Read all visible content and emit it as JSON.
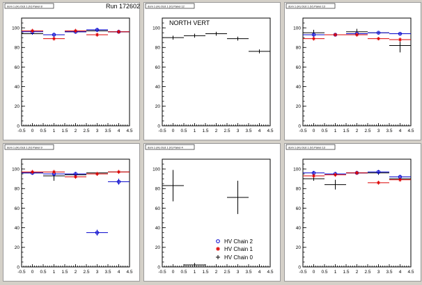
{
  "run_label": "Run 172602",
  "colors": {
    "chain2": "#0000cc",
    "chain1": "#dd0000",
    "chain0": "#000000"
  },
  "legend": {
    "entries": [
      {
        "series": "chain2",
        "label": "HV Chain 2",
        "marker": "circle"
      },
      {
        "series": "chain1",
        "label": "HV Chain 1",
        "marker": "star"
      },
      {
        "series": "chain0",
        "label": "HV Chain 0",
        "marker": "cross"
      }
    ]
  },
  "chart_data": [
    {
      "type": "scatter",
      "title": "dom 1 (H) Ocd 1 (V) Panel 8",
      "xlim": [
        -0.5,
        4.5
      ],
      "ylim": [
        0,
        110
      ],
      "xticks": [
        "-0.5",
        "0",
        "0.5",
        "1",
        "1.5",
        "2",
        "2.5",
        "3",
        "3.5",
        "4",
        "4.5"
      ],
      "yticks": [
        "0",
        "20",
        "40",
        "60",
        "80",
        "100"
      ],
      "series": [
        {
          "key": "chain0",
          "points": [
            {
              "x": 0,
              "y": 94,
              "xerr": 0.5,
              "yerr": 0
            },
            {
              "x": 1,
              "y": 93,
              "xerr": 0.5,
              "yerr": 0
            },
            {
              "x": 2,
              "y": 96,
              "xerr": 0.5,
              "yerr": 0
            },
            {
              "x": 3,
              "y": 97,
              "xerr": 0.5,
              "yerr": 0
            },
            {
              "x": 4,
              "y": 96,
              "xerr": 0.5,
              "yerr": 0
            }
          ]
        },
        {
          "key": "chain2",
          "points": [
            {
              "x": 0,
              "y": 96,
              "xerr": 0.5,
              "yerr": 3
            },
            {
              "x": 1,
              "y": 93,
              "xerr": 0.5,
              "yerr": 2
            },
            {
              "x": 2,
              "y": 96,
              "xerr": 0.5,
              "yerr": 2
            },
            {
              "x": 3,
              "y": 98,
              "xerr": 0.5,
              "yerr": 2
            },
            {
              "x": 4,
              "y": 96,
              "xerr": 0.5,
              "yerr": 2
            }
          ]
        },
        {
          "key": "chain1",
          "points": [
            {
              "x": 0,
              "y": 97,
              "xerr": 0.5,
              "yerr": 2
            },
            {
              "x": 1,
              "y": 89,
              "xerr": 0.5,
              "yerr": 2
            },
            {
              "x": 2,
              "y": 97,
              "xerr": 0.5,
              "yerr": 2
            },
            {
              "x": 3,
              "y": 93,
              "xerr": 0.5,
              "yerr": 2
            },
            {
              "x": 4,
              "y": 96,
              "xerr": 0.5,
              "yerr": 2
            }
          ]
        }
      ]
    },
    {
      "type": "scatter",
      "title": "dom 1 (H) Ocd 1 (V) Panel 12",
      "annotation": "NORTH VERT",
      "xlim": [
        -0.5,
        4.5
      ],
      "ylim": [
        0,
        110
      ],
      "xticks": [
        "-0.5",
        "0",
        "0.5",
        "1",
        "1.5",
        "2",
        "2.5",
        "3",
        "3.5",
        "4",
        "4.5"
      ],
      "yticks": [
        "0",
        "20",
        "40",
        "60",
        "80",
        "100"
      ],
      "series": [
        {
          "key": "chain0",
          "points": [
            {
              "x": 0,
              "y": 90,
              "xerr": 0.5,
              "yerr": 2
            },
            {
              "x": 1,
              "y": 92,
              "xerr": 0.5,
              "yerr": 2
            },
            {
              "x": 2,
              "y": 94,
              "xerr": 0.5,
              "yerr": 2
            },
            {
              "x": 3,
              "y": 89,
              "xerr": 0.5,
              "yerr": 2
            },
            {
              "x": 4,
              "y": 76,
              "xerr": 0.5,
              "yerr": 2
            }
          ]
        }
      ]
    },
    {
      "type": "scatter",
      "title": "dom 1 (H) Ocd 1 (V) Panel 13",
      "xlim": [
        -0.5,
        4.5
      ],
      "ylim": [
        0,
        110
      ],
      "xticks": [
        "-0.5",
        "0",
        "0.5",
        "1",
        "1.5",
        "2",
        "2.5",
        "3",
        "3.5",
        "4",
        "4.5"
      ],
      "yticks": [
        "0",
        "20",
        "40",
        "60",
        "80",
        "100"
      ],
      "series": [
        {
          "key": "chain0",
          "points": [
            {
              "x": 0,
              "y": 95,
              "xerr": 0.5,
              "yerr": 3
            },
            {
              "x": 1,
              "y": 93,
              "xerr": 0.5,
              "yerr": 0
            },
            {
              "x": 2,
              "y": 96,
              "xerr": 0.5,
              "yerr": 3
            },
            {
              "x": 3,
              "y": 95,
              "xerr": 0.5,
              "yerr": 0
            },
            {
              "x": 4,
              "y": 82,
              "xerr": 0.5,
              "yerr": 7
            }
          ]
        },
        {
          "key": "chain2",
          "points": [
            {
              "x": 0,
              "y": 93,
              "xerr": 0.5,
              "yerr": 2
            },
            {
              "x": 1,
              "y": 93,
              "xerr": 0.5,
              "yerr": 1
            },
            {
              "x": 2,
              "y": 94,
              "xerr": 0.5,
              "yerr": 2
            },
            {
              "x": 3,
              "y": 95,
              "xerr": 0.5,
              "yerr": 1
            },
            {
              "x": 4,
              "y": 94,
              "xerr": 0.5,
              "yerr": 1
            }
          ]
        },
        {
          "key": "chain1",
          "points": [
            {
              "x": 0,
              "y": 89,
              "xerr": 0.5,
              "yerr": 2
            },
            {
              "x": 1,
              "y": 93,
              "xerr": 0.5,
              "yerr": 1
            },
            {
              "x": 2,
              "y": 93,
              "xerr": 0.5,
              "yerr": 2
            },
            {
              "x": 3,
              "y": 89,
              "xerr": 0.5,
              "yerr": 1
            },
            {
              "x": 4,
              "y": 88,
              "xerr": 0.5,
              "yerr": 2
            }
          ]
        }
      ]
    },
    {
      "type": "scatter",
      "title": "dom 1 (H) Ocd 1 (V) Panel 9",
      "xlim": [
        -0.5,
        4.5
      ],
      "ylim": [
        0,
        110
      ],
      "xticks": [
        "-0.5",
        "0",
        "0.5",
        "1",
        "1.5",
        "2",
        "2.5",
        "3",
        "3.5",
        "4",
        "4.5"
      ],
      "yticks": [
        "0",
        "20",
        "40",
        "60",
        "80",
        "100"
      ],
      "series": [
        {
          "key": "chain0",
          "points": [
            {
              "x": 0,
              "y": 96,
              "xerr": 0.5,
              "yerr": 0
            },
            {
              "x": 1,
              "y": 93,
              "xerr": 0.5,
              "yerr": 5
            },
            {
              "x": 2,
              "y": 94,
              "xerr": 0.5,
              "yerr": 0
            },
            {
              "x": 3,
              "y": 96,
              "xerr": 0.5,
              "yerr": 0
            },
            {
              "x": 4,
              "y": 97,
              "xerr": 0.5,
              "yerr": 0
            }
          ]
        },
        {
          "key": "chain2",
          "points": [
            {
              "x": 0,
              "y": 96,
              "xerr": 0.5,
              "yerr": 2
            },
            {
              "x": 1,
              "y": 95,
              "xerr": 0.5,
              "yerr": 2
            },
            {
              "x": 2,
              "y": 95,
              "xerr": 0.5,
              "yerr": 2
            },
            {
              "x": 3,
              "y": 35,
              "xerr": 0.5,
              "yerr": 3
            },
            {
              "x": 4,
              "y": 87,
              "xerr": 0.5,
              "yerr": 3
            }
          ]
        },
        {
          "key": "chain1",
          "points": [
            {
              "x": 0,
              "y": 97,
              "xerr": 0.5,
              "yerr": 2
            },
            {
              "x": 1,
              "y": 97,
              "xerr": 0.5,
              "yerr": 2
            },
            {
              "x": 2,
              "y": 92,
              "xerr": 0.5,
              "yerr": 2
            },
            {
              "x": 3,
              "y": 95,
              "xerr": 0.5,
              "yerr": 2
            },
            {
              "x": 4,
              "y": 97,
              "xerr": 0.5,
              "yerr": 2
            }
          ]
        }
      ]
    },
    {
      "type": "scatter",
      "title": "dom 1 (H) Ocd 1 (V) Panel 4",
      "xlim": [
        -0.5,
        4.5
      ],
      "ylim": [
        0,
        110
      ],
      "xticks": [
        "-0.5",
        "0",
        "0.5",
        "1",
        "1.5",
        "2",
        "2.5",
        "3",
        "3.5",
        "4",
        "4.5"
      ],
      "yticks": [
        "0",
        "20",
        "40",
        "60",
        "80",
        "100"
      ],
      "series": [
        {
          "key": "chain0",
          "points": [
            {
              "x": 0,
              "y": 83,
              "xerr": 0.5,
              "yerr": 16
            },
            {
              "x": 1,
              "y": 2,
              "xerr": 0.5,
              "yerr": 2
            },
            {
              "x": 3,
              "y": 71,
              "xerr": 0.5,
              "yerr": 17
            }
          ]
        }
      ]
    },
    {
      "type": "scatter",
      "title": "dom 1 (H) Ocd 1 (V) Panel 13",
      "xlim": [
        -0.5,
        4.5
      ],
      "ylim": [
        0,
        110
      ],
      "xticks": [
        "-0.5",
        "0",
        "0.5",
        "1",
        "1.5",
        "2",
        "2.5",
        "3",
        "3.5",
        "4",
        "4.5"
      ],
      "yticks": [
        "0",
        "20",
        "40",
        "60",
        "80",
        "100"
      ],
      "series": [
        {
          "key": "chain0",
          "points": [
            {
              "x": 0,
              "y": 90,
              "xerr": 0.5,
              "yerr": 2
            },
            {
              "x": 1,
              "y": 84,
              "xerr": 0.5,
              "yerr": 5
            },
            {
              "x": 2,
              "y": 96,
              "xerr": 0.5,
              "yerr": 2
            },
            {
              "x": 3,
              "y": 96,
              "xerr": 0.5,
              "yerr": 2
            },
            {
              "x": 4,
              "y": 90,
              "xerr": 0.5,
              "yerr": 2
            }
          ]
        },
        {
          "key": "chain2",
          "points": [
            {
              "x": 0,
              "y": 96,
              "xerr": 0.5,
              "yerr": 2
            },
            {
              "x": 1,
              "y": 95,
              "xerr": 0.5,
              "yerr": 2
            },
            {
              "x": 2,
              "y": 96,
              "xerr": 0.5,
              "yerr": 2
            },
            {
              "x": 3,
              "y": 97,
              "xerr": 0.5,
              "yerr": 2
            },
            {
              "x": 4,
              "y": 92,
              "xerr": 0.5,
              "yerr": 2
            }
          ]
        },
        {
          "key": "chain1",
          "points": [
            {
              "x": 0,
              "y": 93,
              "xerr": 0.5,
              "yerr": 2
            },
            {
              "x": 1,
              "y": 94,
              "xerr": 0.5,
              "yerr": 2
            },
            {
              "x": 2,
              "y": 96,
              "xerr": 0.5,
              "yerr": 2
            },
            {
              "x": 3,
              "y": 86,
              "xerr": 0.5,
              "yerr": 2
            },
            {
              "x": 4,
              "y": 89,
              "xerr": 0.5,
              "yerr": 2
            }
          ]
        }
      ]
    }
  ]
}
